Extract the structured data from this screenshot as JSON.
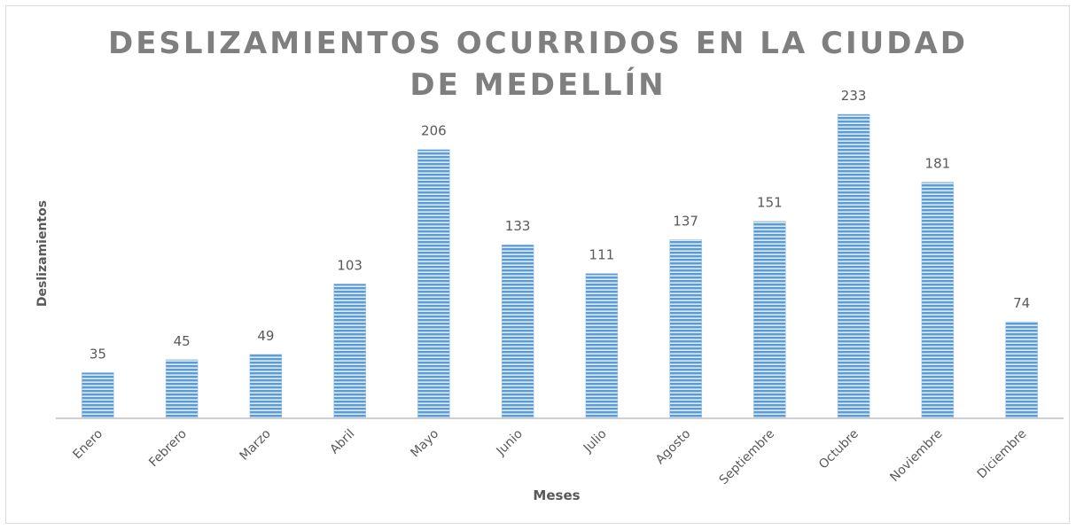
{
  "chart_data": {
    "type": "bar",
    "title": "DESLIZAMIENTOS OCURRIDOS EN LA CIUDAD DE MEDELLÍN",
    "x_label": "Meses",
    "y_label": "Deslizamientos",
    "categories": [
      "Enero",
      "Febrero",
      "Marzo",
      "Abril",
      "Mayo",
      "Junio",
      "Julio",
      "Agosto",
      "Septiembre",
      "Octubre",
      "Noviembre",
      "Diciembre"
    ],
    "values": [
      35,
      45,
      49,
      103,
      206,
      133,
      111,
      137,
      151,
      233,
      181,
      74
    ],
    "color": "#5b9bd5"
  }
}
